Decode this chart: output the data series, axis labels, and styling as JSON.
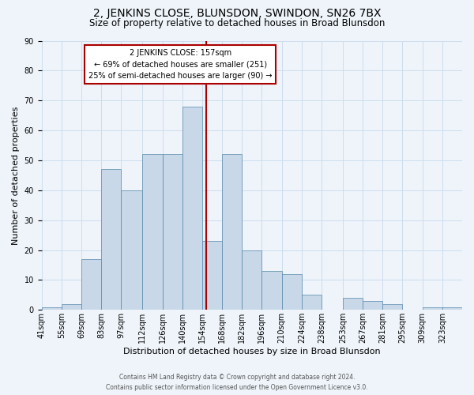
{
  "title": "2, JENKINS CLOSE, BLUNSDON, SWINDON, SN26 7BX",
  "subtitle": "Size of property relative to detached houses in Broad Blunsdon",
  "xlabel": "Distribution of detached houses by size in Broad Blunsdon",
  "ylabel": "Number of detached properties",
  "footer_line1": "Contains HM Land Registry data © Crown copyright and database right 2024.",
  "footer_line2": "Contains public sector information licensed under the Open Government Licence v3.0.",
  "annotation_title": "2 JENKINS CLOSE: 157sqm",
  "annotation_line1": "← 69% of detached houses are smaller (251)",
  "annotation_line2": "25% of semi-detached houses are larger (90) →",
  "bin_labels": [
    "41sqm",
    "55sqm",
    "69sqm",
    "83sqm",
    "97sqm",
    "112sqm",
    "126sqm",
    "140sqm",
    "154sqm",
    "168sqm",
    "182sqm",
    "196sqm",
    "210sqm",
    "224sqm",
    "238sqm",
    "253sqm",
    "267sqm",
    "281sqm",
    "295sqm",
    "309sqm",
    "323sqm"
  ],
  "bin_edges": [
    41,
    55,
    69,
    83,
    97,
    112,
    126,
    140,
    154,
    168,
    182,
    196,
    210,
    224,
    238,
    253,
    267,
    281,
    295,
    309,
    323,
    337
  ],
  "bar_heights": [
    1,
    2,
    17,
    47,
    40,
    52,
    52,
    68,
    23,
    52,
    20,
    13,
    12,
    5,
    0,
    4,
    3,
    2,
    0,
    1,
    1
  ],
  "bar_color": "#c8d8e8",
  "bar_edge_color": "#5588aa",
  "vline_color": "#aa0000",
  "vline_x": 157,
  "annotation_box_color": "#aa0000",
  "annotation_bg": "#ffffff",
  "ylim": [
    0,
    90
  ],
  "yticks": [
    0,
    10,
    20,
    30,
    40,
    50,
    60,
    70,
    80,
    90
  ],
  "grid_color": "#ccddee",
  "background_color": "#eef4fa",
  "title_fontsize": 10,
  "subtitle_fontsize": 8.5,
  "ylabel_fontsize": 8,
  "xlabel_fontsize": 8,
  "tick_fontsize": 7,
  "annotation_fontsize": 7,
  "footer_fontsize": 5.5
}
